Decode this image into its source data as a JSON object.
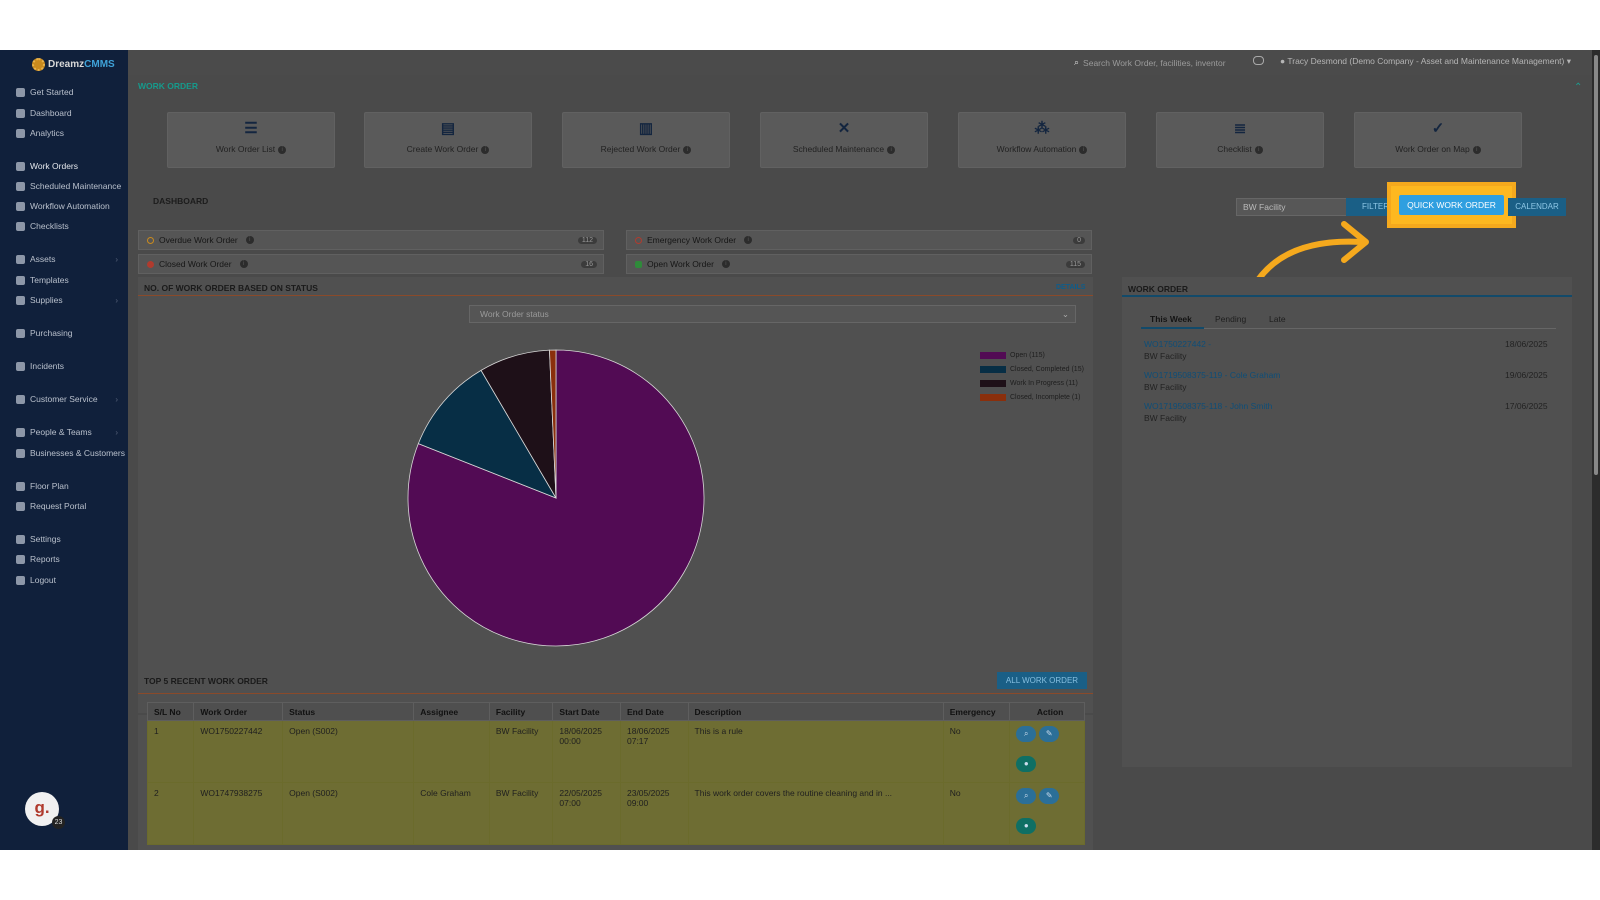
{
  "app": {
    "name_part1": "Dreamz",
    "name_part2": "CMMS"
  },
  "search": {
    "placeholder": "Search Work Order, facilities, inventor"
  },
  "user": {
    "label": "Tracy Desmond (Demo Company - Asset and Maintenance Management)"
  },
  "sidebar": {
    "items": [
      {
        "label": "Get Started"
      },
      {
        "label": "Dashboard"
      },
      {
        "label": "Analytics"
      },
      {
        "label": "Work Orders"
      },
      {
        "label": "Scheduled Maintenance"
      },
      {
        "label": "Workflow Automation"
      },
      {
        "label": "Checklists"
      },
      {
        "label": "Assets"
      },
      {
        "label": "Templates"
      },
      {
        "label": "Supplies"
      },
      {
        "label": "Purchasing"
      },
      {
        "label": "Incidents"
      },
      {
        "label": "Customer Service"
      },
      {
        "label": "People & Teams"
      },
      {
        "label": "Businesses & Customers"
      },
      {
        "label": "Floor Plan"
      },
      {
        "label": "Request Portal"
      },
      {
        "label": "Settings"
      },
      {
        "label": "Reports"
      },
      {
        "label": "Logout"
      }
    ],
    "avatar_letter": "g.",
    "avatar_badge": "23"
  },
  "header": {
    "title": "WORK ORDER"
  },
  "tiles": [
    {
      "label": "Work Order List",
      "icon": "list-icon"
    },
    {
      "label": "Create Work Order",
      "icon": "document-icon"
    },
    {
      "label": "Rejected Work Order",
      "icon": "trash-icon"
    },
    {
      "label": "Scheduled Maintenance",
      "icon": "tools-icon"
    },
    {
      "label": "Workflow Automation",
      "icon": "nodes-icon"
    },
    {
      "label": "Checklist",
      "icon": "checklist-icon"
    },
    {
      "label": "Work Order on Map",
      "icon": "map-check-icon"
    }
  ],
  "dashboard": {
    "title": "DASHBOARD",
    "facility": "BW Facility",
    "filter_label": "FILTER",
    "quick_label": "QUICK WORK ORDER",
    "calendar_label": "CALENDAR"
  },
  "stats": [
    {
      "label": "Overdue Work Order",
      "count": "112",
      "color": "#c98a1e"
    },
    {
      "label": "Emergency Work Order",
      "count": "0",
      "color": "#b03b2e"
    },
    {
      "label": "Closed Work Order",
      "count": "16",
      "color": "#b03b2e"
    },
    {
      "label": "Open Work Order",
      "count": "115",
      "color": "#2f8a3a"
    }
  ],
  "status_chart": {
    "title": "NO. OF WORK ORDER BASED ON STATUS",
    "details_label": "DETAILS",
    "select_value": "Work Order status"
  },
  "chart_data": {
    "type": "pie",
    "categories": [
      "Open (115)",
      "Closed, Completed (15)",
      "Work In Progress (11)",
      "Closed, Incomplete (1)"
    ],
    "values": [
      115,
      15,
      11,
      1
    ],
    "colors": [
      "#520b54",
      "#072e45",
      "#1e1018",
      "#8a2f0c"
    ],
    "legend": "top-right"
  },
  "work_order_panel": {
    "title": "WORK ORDER",
    "tabs": [
      "This Week",
      "Pending",
      "Late"
    ],
    "items": [
      {
        "id": "WO1750227442 -",
        "facility": "BW Facility",
        "date": "18/06/2025"
      },
      {
        "id": "WO1719508375-119 - Cole Graham",
        "facility": "BW Facility",
        "date": "19/06/2025"
      },
      {
        "id": "WO1719508375-118 - John Smith",
        "facility": "BW Facility",
        "date": "17/06/2025"
      }
    ]
  },
  "recent": {
    "title": "TOP 5 RECENT WORK ORDER",
    "all_label": "ALL WORK ORDER",
    "columns": [
      "S/L No",
      "Work Order",
      "Status",
      "Assignee",
      "Facility",
      "Start Date",
      "End Date",
      "Description",
      "Emergency",
      "Action"
    ],
    "rows": [
      {
        "sl": "1",
        "wo": "WO1750227442",
        "status": "Open (S002)",
        "assignee": "",
        "facility": "BW Facility",
        "start_date": "18/06/2025",
        "start_time": "00:00",
        "end_date": "18/06/2025",
        "end_time": "07:17",
        "description": "This is a rule",
        "emergency": "No"
      },
      {
        "sl": "2",
        "wo": "WO1747938275",
        "status": "Open (S002)",
        "assignee": "Cole Graham",
        "facility": "BW Facility",
        "start_date": "22/05/2025",
        "start_time": "07:00",
        "end_date": "23/05/2025",
        "end_time": "09:00",
        "description": "This work order covers the routine cleaning and in ...",
        "emergency": "No"
      }
    ]
  }
}
